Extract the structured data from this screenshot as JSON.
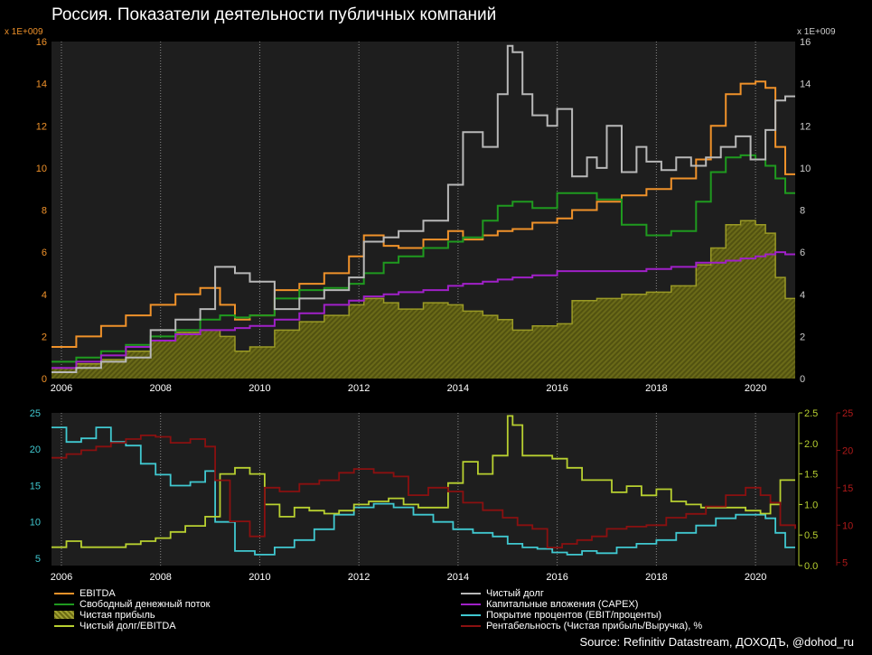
{
  "title": "Россия. Показатели деятельности публичных компаний",
  "source": "Source: Refinitiv Datastream, ДОХОДЪ, @dohod_ru",
  "colors": {
    "ebitda": "#f0922a",
    "fcf": "#1f9a1f",
    "net_income": "#8a8a1e",
    "net_debt": "#b8b8b8",
    "capex": "#a020c8",
    "interest_cover": "#40c8d0",
    "nd_ebitda": "#b8d030",
    "margin": "#8a1010"
  },
  "chart_data": [
    {
      "type": "line",
      "title": "Россия. Показатели деятельности публичных компаний",
      "y_multiplier_left": "x 1E+009",
      "y_multiplier_right": "x 1E+009",
      "xlim": [
        2005.8,
        2020.8
      ],
      "ylim": [
        0,
        16
      ],
      "yticks": [
        "0",
        "2",
        "4",
        "6",
        "8",
        "10",
        "12",
        "14",
        "16"
      ],
      "xticks": [
        "2006",
        "2008",
        "2010",
        "2012",
        "2014",
        "2016",
        "2018",
        "2020"
      ],
      "series": [
        {
          "key": "net_income",
          "name": "Чистая прибыль",
          "style": "area",
          "x": [
            2005.8,
            2006.3,
            2006.8,
            2007.3,
            2007.8,
            2008.3,
            2008.8,
            2009.2,
            2009.5,
            2009.8,
            2010.3,
            2010.8,
            2011.3,
            2011.8,
            2012.1,
            2012.5,
            2012.8,
            2013.3,
            2013.8,
            2014.1,
            2014.5,
            2014.8,
            2015.1,
            2015.5,
            2016.0,
            2016.3,
            2016.8,
            2017.3,
            2017.8,
            2018.3,
            2018.8,
            2019.1,
            2019.4,
            2019.7,
            2020.0,
            2020.2,
            2020.4,
            2020.6,
            2020.8
          ],
          "values": [
            0.5,
            0.7,
            0.9,
            1.3,
            1.8,
            2.2,
            2.3,
            2.0,
            1.3,
            1.5,
            2.3,
            2.7,
            3.0,
            3.5,
            3.8,
            3.6,
            3.3,
            3.6,
            3.5,
            3.2,
            3.0,
            2.8,
            2.3,
            2.5,
            2.6,
            3.7,
            3.8,
            4.0,
            4.1,
            4.4,
            5.4,
            6.2,
            7.3,
            7.5,
            7.3,
            6.9,
            4.8,
            3.8,
            3.8
          ]
        },
        {
          "key": "ebitda",
          "name": "EBITDA",
          "x": [
            2005.8,
            2006.3,
            2006.8,
            2007.3,
            2007.8,
            2008.3,
            2008.8,
            2009.2,
            2009.5,
            2009.8,
            2010.3,
            2010.8,
            2011.3,
            2011.8,
            2012.1,
            2012.5,
            2012.8,
            2013.3,
            2013.8,
            2014.1,
            2014.5,
            2014.8,
            2015.1,
            2015.5,
            2016.0,
            2016.3,
            2016.8,
            2017.3,
            2017.8,
            2018.3,
            2018.8,
            2019.1,
            2019.4,
            2019.7,
            2020.0,
            2020.2,
            2020.4,
            2020.6,
            2020.8
          ],
          "values": [
            1.5,
            2.0,
            2.5,
            3.0,
            3.5,
            4.0,
            4.3,
            3.5,
            2.8,
            3.0,
            4.2,
            4.5,
            5.0,
            5.8,
            6.8,
            6.3,
            6.2,
            6.6,
            7.0,
            6.6,
            6.8,
            7.0,
            7.1,
            7.4,
            7.6,
            8.0,
            8.4,
            8.7,
            9.0,
            9.5,
            10.4,
            12.0,
            13.5,
            14.0,
            14.1,
            13.8,
            11.0,
            9.7,
            9.7
          ]
        },
        {
          "key": "fcf",
          "name": "Свободный денежный поток",
          "x": [
            2005.8,
            2006.3,
            2006.8,
            2007.3,
            2007.8,
            2008.3,
            2008.8,
            2009.2,
            2009.5,
            2009.8,
            2010.3,
            2010.8,
            2011.3,
            2011.8,
            2012.1,
            2012.5,
            2012.8,
            2013.3,
            2013.8,
            2014.1,
            2014.5,
            2014.8,
            2015.1,
            2015.5,
            2016.0,
            2016.3,
            2016.8,
            2017.3,
            2017.8,
            2018.3,
            2018.8,
            2019.1,
            2019.4,
            2019.7,
            2020.0,
            2020.2,
            2020.4,
            2020.6,
            2020.8
          ],
          "values": [
            0.8,
            1.0,
            1.3,
            1.6,
            2.0,
            2.3,
            2.8,
            3.0,
            2.9,
            3.0,
            3.8,
            4.2,
            4.3,
            4.5,
            5.0,
            5.5,
            5.8,
            6.2,
            6.5,
            6.7,
            7.5,
            8.2,
            8.4,
            8.1,
            8.8,
            8.8,
            8.5,
            7.3,
            6.8,
            7.0,
            8.4,
            9.8,
            10.5,
            10.6,
            10.4,
            10.1,
            9.5,
            8.8,
            8.8
          ]
        },
        {
          "key": "capex",
          "name": "Капитальные вложения (CAPEX)",
          "x": [
            2005.8,
            2006.3,
            2006.8,
            2007.3,
            2007.8,
            2008.3,
            2008.8,
            2009.2,
            2009.5,
            2009.8,
            2010.3,
            2010.8,
            2011.3,
            2011.8,
            2012.1,
            2012.5,
            2012.8,
            2013.3,
            2013.8,
            2014.1,
            2014.5,
            2014.8,
            2015.1,
            2015.5,
            2016.0,
            2016.3,
            2016.8,
            2017.3,
            2017.8,
            2018.3,
            2018.8,
            2019.1,
            2019.4,
            2019.7,
            2020.0,
            2020.2,
            2020.4,
            2020.6,
            2020.8
          ],
          "values": [
            0.5,
            0.8,
            1.1,
            1.5,
            1.8,
            2.1,
            2.3,
            2.3,
            2.4,
            2.5,
            2.8,
            3.1,
            3.5,
            3.7,
            3.9,
            4.0,
            4.1,
            4.2,
            4.4,
            4.5,
            4.6,
            4.7,
            4.8,
            4.9,
            5.1,
            5.1,
            5.1,
            5.1,
            5.2,
            5.3,
            5.5,
            5.5,
            5.6,
            5.7,
            5.8,
            5.9,
            6.0,
            5.9,
            5.9
          ]
        },
        {
          "key": "net_debt",
          "name": "Чистый долг",
          "x": [
            2005.8,
            2006.3,
            2006.8,
            2007.3,
            2007.8,
            2008.3,
            2008.8,
            2009.1,
            2009.5,
            2009.8,
            2010.3,
            2010.8,
            2011.3,
            2011.8,
            2012.1,
            2012.5,
            2012.8,
            2013.3,
            2013.8,
            2014.1,
            2014.5,
            2014.8,
            2015.0,
            2015.1,
            2015.3,
            2015.5,
            2015.8,
            2016.0,
            2016.3,
            2016.6,
            2016.8,
            2017.0,
            2017.3,
            2017.6,
            2017.8,
            2018.1,
            2018.4,
            2018.7,
            2019.0,
            2019.3,
            2019.6,
            2019.9,
            2020.2,
            2020.4,
            2020.6,
            2020.8
          ],
          "values": [
            0.3,
            0.5,
            0.8,
            1.0,
            2.3,
            2.8,
            3.3,
            5.3,
            5.0,
            4.6,
            3.3,
            3.8,
            4.2,
            4.8,
            6.5,
            6.7,
            7.0,
            7.5,
            9.2,
            11.7,
            11.0,
            13.5,
            15.8,
            15.5,
            13.5,
            12.5,
            12.0,
            12.8,
            9.6,
            10.5,
            10.0,
            12.0,
            9.8,
            11.0,
            10.3,
            9.9,
            10.5,
            10.1,
            10.5,
            11.0,
            11.5,
            10.4,
            11.8,
            13.2,
            13.4,
            13.4
          ]
        }
      ]
    },
    {
      "type": "line",
      "xlim": [
        2005.8,
        2020.8
      ],
      "xticks": [
        "2006",
        "2008",
        "2010",
        "2012",
        "2014",
        "2016",
        "2018",
        "2020"
      ],
      "left_axis": {
        "ylim": [
          4,
          25
        ],
        "yticks": [
          "5",
          "10",
          "15",
          "20",
          "25"
        ]
      },
      "right_axis_1": {
        "ylim": [
          0,
          2.5
        ],
        "yticks": [
          "0.0",
          "0.5",
          "1.0",
          "1.5",
          "2.0",
          "2.5"
        ]
      },
      "right_axis_2": {
        "ylim": [
          4.6,
          25
        ],
        "yticks": [
          "5",
          "10",
          "15",
          "20",
          "25"
        ]
      },
      "series": [
        {
          "key": "interest_cover",
          "name": "Покрытие процентов (EBIT/проценты)",
          "axis": "left",
          "x": [
            2005.8,
            2006.1,
            2006.4,
            2006.7,
            2007.0,
            2007.3,
            2007.6,
            2007.9,
            2008.2,
            2008.6,
            2008.9,
            2009.1,
            2009.5,
            2009.9,
            2010.3,
            2010.7,
            2011.1,
            2011.5,
            2011.9,
            2012.3,
            2012.7,
            2013.1,
            2013.5,
            2013.9,
            2014.3,
            2014.7,
            2015.0,
            2015.3,
            2015.6,
            2015.9,
            2016.2,
            2016.5,
            2016.8,
            2017.2,
            2017.6,
            2018.0,
            2018.4,
            2018.8,
            2019.2,
            2019.6,
            2020.0,
            2020.2,
            2020.4,
            2020.6,
            2020.8
          ],
          "values": [
            23.0,
            21.0,
            21.5,
            23.0,
            21.0,
            20.5,
            18.0,
            16.5,
            15.0,
            15.5,
            17.0,
            10.0,
            6.0,
            5.5,
            6.5,
            7.5,
            9.0,
            11.0,
            12.0,
            12.5,
            12.0,
            11.0,
            10.0,
            9.0,
            8.5,
            8.0,
            7.0,
            6.5,
            6.3,
            5.8,
            5.5,
            6.0,
            5.7,
            6.5,
            7.0,
            7.5,
            8.5,
            9.5,
            10.5,
            11.0,
            11.0,
            10.5,
            8.5,
            6.5,
            6.5
          ]
        },
        {
          "key": "nd_ebitda",
          "name": "Чистый долг/EBITDA",
          "axis": "right1",
          "x": [
            2005.8,
            2006.1,
            2006.4,
            2006.7,
            2007.0,
            2007.3,
            2007.6,
            2007.9,
            2008.2,
            2008.5,
            2008.9,
            2009.2,
            2009.5,
            2009.8,
            2010.1,
            2010.4,
            2010.7,
            2011.0,
            2011.3,
            2011.6,
            2011.9,
            2012.2,
            2012.6,
            2012.9,
            2013.2,
            2013.5,
            2013.8,
            2014.1,
            2014.4,
            2014.7,
            2015.0,
            2015.1,
            2015.3,
            2015.6,
            2015.9,
            2016.2,
            2016.5,
            2016.8,
            2017.1,
            2017.4,
            2017.7,
            2018.0,
            2018.3,
            2018.6,
            2018.9,
            2019.2,
            2019.5,
            2019.8,
            2020.1,
            2020.3,
            2020.5,
            2020.8
          ],
          "values": [
            0.3,
            0.4,
            0.3,
            0.3,
            0.3,
            0.35,
            0.4,
            0.45,
            0.55,
            0.65,
            0.8,
            1.5,
            1.6,
            1.5,
            1.0,
            0.8,
            0.95,
            0.9,
            0.85,
            0.9,
            1.0,
            1.05,
            1.1,
            1.0,
            0.95,
            0.95,
            1.35,
            1.7,
            1.5,
            1.8,
            2.45,
            2.3,
            1.8,
            1.8,
            1.75,
            1.6,
            1.4,
            1.4,
            1.2,
            1.3,
            1.15,
            1.25,
            1.05,
            1.0,
            0.95,
            0.95,
            0.95,
            0.9,
            0.85,
            1.0,
            1.4,
            1.4
          ]
        },
        {
          "key": "margin",
          "name": "Рентабельность (Чистая прибыль/Выручка), %",
          "axis": "right2",
          "x": [
            2005.8,
            2006.1,
            2006.4,
            2006.7,
            2007.0,
            2007.3,
            2007.6,
            2007.9,
            2008.2,
            2008.6,
            2008.9,
            2009.1,
            2009.4,
            2009.8,
            2010.1,
            2010.4,
            2010.8,
            2011.2,
            2011.6,
            2011.9,
            2012.3,
            2012.7,
            2013.0,
            2013.4,
            2013.8,
            2014.1,
            2014.5,
            2014.9,
            2015.2,
            2015.5,
            2015.8,
            2016.1,
            2016.4,
            2016.7,
            2017.0,
            2017.4,
            2017.8,
            2018.2,
            2018.6,
            2019.0,
            2019.4,
            2019.8,
            2020.1,
            2020.3,
            2020.5,
            2020.8
          ],
          "values": [
            19.0,
            19.5,
            20.0,
            20.5,
            21.0,
            21.5,
            22.0,
            21.8,
            21.0,
            21.5,
            20.5,
            16.0,
            10.5,
            8.5,
            15.0,
            14.5,
            15.5,
            16.0,
            17.0,
            17.5,
            17.0,
            16.5,
            14.0,
            15.0,
            14.5,
            13.0,
            12.0,
            11.0,
            10.0,
            9.5,
            7.0,
            7.5,
            8.0,
            8.5,
            9.5,
            9.8,
            10.0,
            11.0,
            11.5,
            12.5,
            14.0,
            15.0,
            14.0,
            13.0,
            10.0,
            9.5
          ]
        }
      ]
    }
  ],
  "legend": {
    "ebitda": "EBITDA",
    "fcf": "Свободный денежный поток",
    "net_income": "Чистая прибыль",
    "nd_ebitda": "Чистый долг/EBITDA",
    "net_debt": "Чистый долг",
    "capex": "Капитальные вложения (CAPEX)",
    "interest_cover": "Покрытие процентов (EBIT/проценты)",
    "margin": "Рентабельность (Чистая прибыль/Выручка), %"
  }
}
